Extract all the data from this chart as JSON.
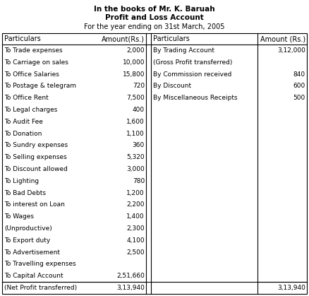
{
  "title1": "In the books of Mr. K. Baruah",
  "title2": "Profit and Loss Account",
  "title3": "For the year ending on 31st March, 2005",
  "title3_normal": "For the year ending on 31",
  "title3_super": "st",
  "title3_end": " March, 2005",
  "header_left1": "Particulars",
  "header_left2": "Amount(Rs.)",
  "header_right1": "Particulars",
  "header_right2": "Amount (Rs.)",
  "left_rows": [
    [
      "To Trade expenses",
      "2,000"
    ],
    [
      "To Carriage on sales",
      "10,000"
    ],
    [
      "To Office Salaries",
      "15,800"
    ],
    [
      "To Postage & telegram",
      "720"
    ],
    [
      "To Office Rent",
      "7,500"
    ],
    [
      "To Legal charges",
      "400"
    ],
    [
      "To Audit Fee",
      "1,600"
    ],
    [
      "To Donation",
      "1,100"
    ],
    [
      "To Sundry expenses",
      "360"
    ],
    [
      "To Selling expenses",
      "5,320"
    ],
    [
      "To Discount allowed",
      "3,000"
    ],
    [
      "To Lighting",
      "780"
    ],
    [
      "To Bad Debts",
      "1,200"
    ],
    [
      "To interest on Loan",
      "2,200"
    ],
    [
      "To Wages",
      "1,400"
    ],
    [
      "(Unproductive)",
      "2,300"
    ],
    [
      "To Export duty",
      "4,100"
    ],
    [
      "To Advertisement",
      "2,500"
    ],
    [
      "To Travelling expenses",
      ""
    ],
    [
      "To Capital Account",
      "2,51,660"
    ],
    [
      "(Net Profit transferred)",
      "3,13,940"
    ]
  ],
  "right_rows": [
    [
      "By Trading Account",
      "3,12,000"
    ],
    [
      "(Gross Profit transferred)",
      ""
    ],
    [
      "By Commission received",
      "840"
    ],
    [
      "By Discount",
      "600"
    ],
    [
      "By Miscellaneous Receipts",
      "500"
    ],
    [
      "",
      ""
    ],
    [
      "",
      ""
    ],
    [
      "",
      ""
    ],
    [
      "",
      ""
    ],
    [
      "",
      ""
    ],
    [
      "",
      ""
    ],
    [
      "",
      ""
    ],
    [
      "",
      ""
    ],
    [
      "",
      ""
    ],
    [
      "",
      ""
    ],
    [
      "",
      ""
    ],
    [
      "",
      ""
    ],
    [
      "",
      ""
    ],
    [
      "",
      ""
    ],
    [
      "",
      ""
    ],
    [
      "",
      "3,13,940"
    ]
  ],
  "bg_color": "#ffffff",
  "text_color": "#000000",
  "border_color": "#000000",
  "fig_width": 4.38,
  "fig_height": 4.19,
  "dpi": 100
}
